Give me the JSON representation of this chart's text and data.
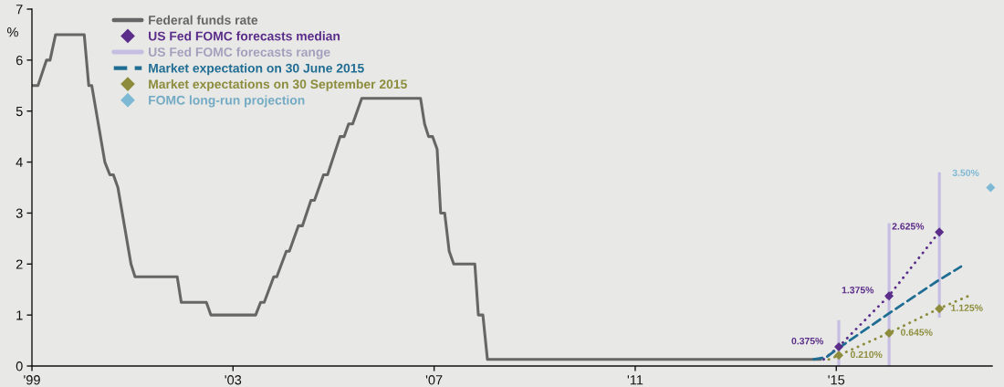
{
  "chart_data": {
    "type": "line",
    "ylabel": "%",
    "xlim": [
      1999,
      2018.1
    ],
    "xticks": [
      {
        "value": 1999,
        "label": "'99"
      },
      {
        "value": 2003,
        "label": "'03"
      },
      {
        "value": 2007,
        "label": "'07"
      },
      {
        "value": 2011,
        "label": "'11"
      },
      {
        "value": 2015,
        "label": "'15"
      }
    ],
    "ylim": [
      0,
      7
    ],
    "yticks": [
      0,
      1,
      2,
      3,
      4,
      5,
      6,
      7
    ],
    "grid": false,
    "legend": "top left",
    "series": [
      {
        "name": "Federal funds rate",
        "color": "#666666",
        "line_style": "solid",
        "x": [
          1999.0,
          1999.12,
          1999.29,
          1999.36,
          1999.47,
          2000.04,
          2000.13,
          2000.19,
          2000.45,
          2000.55,
          2000.62,
          2000.71,
          2000.97,
          2001.05,
          2001.89,
          2001.97,
          2002.47,
          2002.56,
          2003.45,
          2003.55,
          2003.62,
          2003.81,
          2003.87,
          2004.06,
          2004.12,
          2004.3,
          2004.38,
          2004.55,
          2004.62,
          2004.8,
          2004.88,
          2005.13,
          2005.21,
          2005.3,
          2005.38,
          2005.56,
          2006.73,
          2006.81,
          2006.89,
          2006.97,
          2007.06,
          2007.13,
          2007.21,
          2007.3,
          2007.39,
          2007.81,
          2007.88,
          2007.97,
          2008.06,
          2014.69
        ],
        "values": [
          5.5,
          5.5,
          6.0,
          6.0,
          6.5,
          6.5,
          5.5,
          5.5,
          4.0,
          3.75,
          3.75,
          3.5,
          2.0,
          1.75,
          1.75,
          1.25,
          1.25,
          1.0,
          1.0,
          1.25,
          1.25,
          1.75,
          1.75,
          2.25,
          2.25,
          2.75,
          2.75,
          3.25,
          3.25,
          3.75,
          3.75,
          4.5,
          4.5,
          4.75,
          4.75,
          5.25,
          5.25,
          4.75,
          4.5,
          4.5,
          4.25,
          3.0,
          3.0,
          2.25,
          2.0,
          2.0,
          1.0,
          1.0,
          0.13,
          0.13
        ]
      },
      {
        "color": "#5b2d8a",
        "line_style": "dotted",
        "x": [
          2014.75,
          2015.05,
          2016.05,
          2017.05
        ],
        "values": [
          0.13,
          0.38,
          1.38,
          2.63
        ]
      },
      {
        "name": "US Fed FOMC forecasts median",
        "type": "scatter",
        "marker": "diamond",
        "color": "#5b2d8a",
        "x": [
          2015.05,
          2016.05,
          2017.05
        ],
        "values": [
          0.375,
          1.375,
          2.625
        ],
        "value_labels": [
          "0.375%",
          "1.375%",
          "2.625%"
        ]
      },
      {
        "name": "US Fed FOMC forecasts range",
        "type": "bar",
        "color": "#c5bde2",
        "x": [
          2015.05,
          2016.05,
          2017.05
        ],
        "base": [
          0,
          0,
          0.95
        ],
        "values": [
          0.9,
          2.8,
          2.85
        ]
      },
      {
        "name": "Market expectation on 30 June 2015",
        "color": "#1f6d93",
        "line_style": "dashed",
        "x": [
          2014.55,
          2014.8,
          2015.0,
          2016.0,
          2017.0,
          2017.48
        ],
        "values": [
          0.13,
          0.17,
          0.32,
          1.0,
          1.66,
          1.95
        ]
      },
      {
        "color": "#8c8c3c",
        "line_style": "dotted",
        "x": [
          2014.85,
          2015.05,
          2016.05,
          2017.05,
          2017.67
        ],
        "values": [
          0.13,
          0.21,
          0.65,
          1.13,
          1.39
        ]
      },
      {
        "name": "Market expectations on 30 September 2015",
        "type": "scatter",
        "marker": "diamond",
        "color": "#8c8c3c",
        "x": [
          2015.05,
          2016.05,
          2017.05
        ],
        "values": [
          0.21,
          0.645,
          1.125
        ],
        "value_labels": [
          "0.210%",
          "0.645%",
          "1.125%"
        ]
      },
      {
        "name": "FOMC long-run projection",
        "type": "scatter",
        "marker": "diamond",
        "color": "#7db9d5",
        "x": [
          2018.07
        ],
        "values": [
          3.5
        ],
        "value_labels": [
          "3.50%"
        ]
      }
    ]
  }
}
